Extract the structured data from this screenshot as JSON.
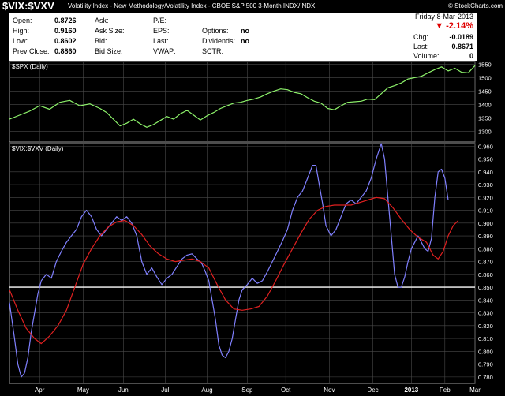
{
  "header": {
    "symbol": "$VIX:$VXV",
    "description": "Volatility Index - New Methodology/Volatility Index - CBOE S&P 500 3-Month",
    "exchange": "INDX/INDX",
    "watermark": "© StockCharts.com"
  },
  "quote": {
    "date": "Friday 8-Mar-2013",
    "change_pct": "-2.14%",
    "change_arrow": "down-triangle-icon",
    "open_label": "Open:",
    "open_value": "0.8726",
    "high_label": "High:",
    "high_value": "0.9160",
    "low_label": "Low:",
    "low_value": "0.8602",
    "prev_close_label": "Prev Close:",
    "prev_close_value": "0.8860",
    "ask_label": "Ask:",
    "ask_size_label": "Ask Size:",
    "bid_label": "Bid:",
    "bid_size_label": "Bid Size:",
    "pe_label": "P/E:",
    "eps_label": "EPS:",
    "last_label": "Last:",
    "vwap_label": "VWAP:",
    "options_label": "Options:",
    "options_value": "no",
    "dividends_label": "Dividends:",
    "dividends_value": "no",
    "sctr_label": "SCTR:",
    "chg_label": "Chg:",
    "chg_value": "-0.0189",
    "last_right_label": "Last:",
    "last_right_value": "0.8671",
    "volume_label": "Volume:",
    "volume_value": "0"
  },
  "colors": {
    "background": "#000000",
    "grid": "#4a4a4a",
    "spx_line": "#8cf06a",
    "ratio_line": "#8080ff",
    "ma_line": "#e02020",
    "reference_line": "#ffffff",
    "down": "#e00000"
  },
  "chart_data": [
    {
      "type": "line",
      "panel_label": "$SPX (Daily)",
      "ylim": [
        1260,
        1560
      ],
      "yticks": [
        1300,
        1350,
        1400,
        1450,
        1500,
        1550
      ],
      "grid": true,
      "x_index_range": [
        0,
        255
      ],
      "series": [
        {
          "name": "$SPX",
          "color": "#8cf06a",
          "points": [
            [
              0,
              1345
            ],
            [
              6,
              1360
            ],
            [
              12,
              1375
            ],
            [
              18,
              1395
            ],
            [
              24,
              1382
            ],
            [
              30,
              1408
            ],
            [
              36,
              1415
            ],
            [
              42,
              1395
            ],
            [
              48,
              1402
            ],
            [
              54,
              1385
            ],
            [
              58,
              1370
            ],
            [
              62,
              1345
            ],
            [
              66,
              1320
            ],
            [
              70,
              1330
            ],
            [
              74,
              1345
            ],
            [
              78,
              1328
            ],
            [
              82,
              1315
            ],
            [
              86,
              1325
            ],
            [
              90,
              1340
            ],
            [
              94,
              1355
            ],
            [
              98,
              1345
            ],
            [
              102,
              1365
            ],
            [
              106,
              1378
            ],
            [
              110,
              1360
            ],
            [
              114,
              1342
            ],
            [
              118,
              1358
            ],
            [
              122,
              1370
            ],
            [
              126,
              1385
            ],
            [
              130,
              1395
            ],
            [
              134,
              1405
            ],
            [
              138,
              1408
            ],
            [
              142,
              1415
            ],
            [
              146,
              1420
            ],
            [
              150,
              1428
            ],
            [
              154,
              1440
            ],
            [
              158,
              1450
            ],
            [
              162,
              1458
            ],
            [
              166,
              1455
            ],
            [
              170,
              1445
            ],
            [
              174,
              1440
            ],
            [
              178,
              1425
            ],
            [
              182,
              1412
            ],
            [
              186,
              1405
            ],
            [
              190,
              1385
            ],
            [
              194,
              1380
            ],
            [
              198,
              1395
            ],
            [
              202,
              1408
            ],
            [
              206,
              1410
            ],
            [
              210,
              1412
            ],
            [
              214,
              1420
            ],
            [
              218,
              1418
            ],
            [
              222,
              1440
            ],
            [
              226,
              1462
            ],
            [
              230,
              1470
            ],
            [
              234,
              1480
            ],
            [
              238,
              1495
            ],
            [
              242,
              1500
            ],
            [
              246,
              1505
            ],
            [
              250,
              1518
            ],
            [
              254,
              1530
            ],
            [
              258,
              1540
            ],
            [
              262,
              1525
            ],
            [
              266,
              1535
            ],
            [
              270,
              1520
            ],
            [
              274,
              1518
            ],
            [
              278,
              1545
            ]
          ]
        }
      ]
    },
    {
      "type": "line",
      "panel_label": "$VIX:$VXV (Daily)",
      "ylim": [
        0.775,
        0.962
      ],
      "yticks": [
        0.78,
        0.79,
        0.8,
        0.81,
        0.82,
        0.83,
        0.84,
        0.85,
        0.86,
        0.87,
        0.88,
        0.89,
        0.9,
        0.91,
        0.92,
        0.93,
        0.94,
        0.95,
        0.96
      ],
      "x_tick_labels": [
        "Apr",
        "May",
        "Jun",
        "Jul",
        "Aug",
        "Sep",
        "Oct",
        "Nov",
        "Dec",
        "2013",
        "Feb",
        "Mar"
      ],
      "x_tick_index": [
        18,
        44,
        68,
        93,
        118,
        142,
        165,
        191,
        217,
        240,
        260,
        278
      ],
      "reference_value": 0.85,
      "grid": true,
      "series": [
        {
          "name": "$VIX:$VXV",
          "color": "#8080ff",
          "points": [
            [
              0,
              0.838
            ],
            [
              3,
              0.81
            ],
            [
              5,
              0.79
            ],
            [
              7,
              0.78
            ],
            [
              9,
              0.783
            ],
            [
              11,
              0.795
            ],
            [
              13,
              0.815
            ],
            [
              15,
              0.83
            ],
            [
              17,
              0.845
            ],
            [
              19,
              0.855
            ],
            [
              22,
              0.86
            ],
            [
              25,
              0.857
            ],
            [
              28,
              0.87
            ],
            [
              31,
              0.878
            ],
            [
              34,
              0.885
            ],
            [
              37,
              0.89
            ],
            [
              40,
              0.895
            ],
            [
              43,
              0.905
            ],
            [
              46,
              0.91
            ],
            [
              49,
              0.905
            ],
            [
              52,
              0.895
            ],
            [
              55,
              0.89
            ],
            [
              58,
              0.895
            ],
            [
              61,
              0.9
            ],
            [
              64,
              0.905
            ],
            [
              67,
              0.902
            ],
            [
              70,
              0.905
            ],
            [
              73,
              0.9
            ],
            [
              76,
              0.89
            ],
            [
              79,
              0.87
            ],
            [
              82,
              0.86
            ],
            [
              85,
              0.865
            ],
            [
              88,
              0.858
            ],
            [
              91,
              0.852
            ],
            [
              94,
              0.857
            ],
            [
              97,
              0.86
            ],
            [
              100,
              0.866
            ],
            [
              103,
              0.872
            ],
            [
              106,
              0.875
            ],
            [
              109,
              0.876
            ],
            [
              112,
              0.872
            ],
            [
              115,
              0.868
            ],
            [
              117,
              0.862
            ],
            [
              119,
              0.855
            ],
            [
              121,
              0.84
            ],
            [
              123,
              0.825
            ],
            [
              125,
              0.805
            ],
            [
              127,
              0.797
            ],
            [
              129,
              0.795
            ],
            [
              131,
              0.8
            ],
            [
              133,
              0.81
            ],
            [
              135,
              0.825
            ],
            [
              137,
              0.84
            ],
            [
              139,
              0.848
            ],
            [
              142,
              0.852
            ],
            [
              145,
              0.857
            ],
            [
              148,
              0.853
            ],
            [
              151,
              0.855
            ],
            [
              154,
              0.862
            ],
            [
              157,
              0.87
            ],
            [
              160,
              0.878
            ],
            [
              163,
              0.886
            ],
            [
              166,
              0.895
            ],
            [
              169,
              0.91
            ],
            [
              172,
              0.92
            ],
            [
              175,
              0.925
            ],
            [
              178,
              0.935
            ],
            [
              181,
              0.945
            ],
            [
              183,
              0.945
            ],
            [
              185,
              0.93
            ],
            [
              187,
              0.915
            ],
            [
              189,
              0.898
            ],
            [
              192,
              0.89
            ],
            [
              195,
              0.895
            ],
            [
              198,
              0.905
            ],
            [
              201,
              0.915
            ],
            [
              204,
              0.918
            ],
            [
              207,
              0.915
            ],
            [
              210,
              0.92
            ],
            [
              213,
              0.925
            ],
            [
              216,
              0.935
            ],
            [
              219,
              0.95
            ],
            [
              222,
              0.962
            ],
            [
              224,
              0.95
            ],
            [
              226,
              0.92
            ],
            [
              228,
              0.89
            ],
            [
              230,
              0.86
            ],
            [
              232,
              0.85
            ],
            [
              234,
              0.85
            ],
            [
              236,
              0.858
            ],
            [
              238,
              0.87
            ],
            [
              240,
              0.88
            ],
            [
              242,
              0.885
            ],
            [
              244,
              0.89
            ],
            [
              246,
              0.885
            ],
            [
              248,
              0.88
            ],
            [
              250,
              0.878
            ],
            [
              252,
              0.888
            ],
            [
              254,
              0.92
            ],
            [
              256,
              0.94
            ],
            [
              258,
              0.942
            ],
            [
              260,
              0.935
            ],
            [
              262,
              0.918
            ]
          ]
        },
        {
          "name": "MA",
          "color": "#e02020",
          "points": [
            [
              0,
              0.848
            ],
            [
              5,
              0.832
            ],
            [
              10,
              0.818
            ],
            [
              15,
              0.81
            ],
            [
              19,
              0.806
            ],
            [
              24,
              0.812
            ],
            [
              29,
              0.82
            ],
            [
              34,
              0.832
            ],
            [
              39,
              0.85
            ],
            [
              44,
              0.868
            ],
            [
              49,
              0.88
            ],
            [
              54,
              0.89
            ],
            [
              59,
              0.897
            ],
            [
              64,
              0.901
            ],
            [
              69,
              0.902
            ],
            [
              74,
              0.898
            ],
            [
              79,
              0.891
            ],
            [
              84,
              0.882
            ],
            [
              89,
              0.876
            ],
            [
              94,
              0.872
            ],
            [
              99,
              0.87
            ],
            [
              104,
              0.871
            ],
            [
              109,
              0.872
            ],
            [
              114,
              0.87
            ],
            [
              119,
              0.865
            ],
            [
              124,
              0.852
            ],
            [
              129,
              0.84
            ],
            [
              134,
              0.833
            ],
            [
              139,
              0.832
            ],
            [
              144,
              0.833
            ],
            [
              149,
              0.835
            ],
            [
              154,
              0.843
            ],
            [
              159,
              0.855
            ],
            [
              164,
              0.868
            ],
            [
              169,
              0.88
            ],
            [
              174,
              0.892
            ],
            [
              179,
              0.903
            ],
            [
              184,
              0.91
            ],
            [
              189,
              0.913
            ],
            [
              194,
              0.914
            ],
            [
              199,
              0.914
            ],
            [
              204,
              0.914
            ],
            [
              209,
              0.916
            ],
            [
              214,
              0.918
            ],
            [
              219,
              0.92
            ],
            [
              224,
              0.919
            ],
            [
              229,
              0.912
            ],
            [
              234,
              0.903
            ],
            [
              239,
              0.895
            ],
            [
              244,
              0.889
            ],
            [
              249,
              0.885
            ],
            [
              253,
              0.875
            ],
            [
              256,
              0.872
            ],
            [
              259,
              0.878
            ],
            [
              262,
              0.89
            ],
            [
              265,
              0.898
            ],
            [
              268,
              0.902
            ]
          ]
        }
      ]
    }
  ]
}
